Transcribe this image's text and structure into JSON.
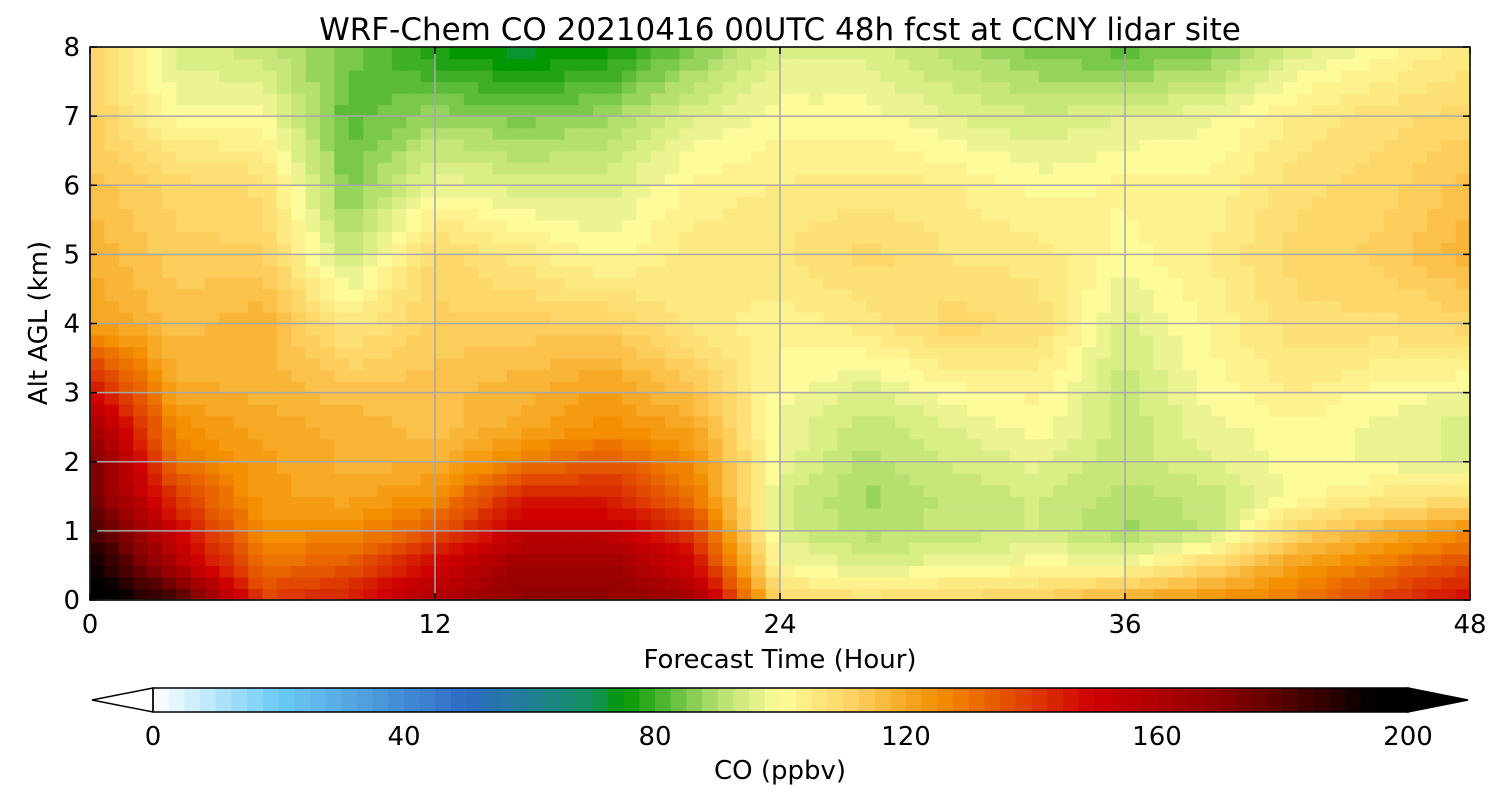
{
  "chart_data": {
    "type": "heatmap",
    "title": "WRF-Chem CO  20210416 00UTC 48h fcst at CCNY lidar site",
    "xlabel": "Forecast Time (Hour)",
    "ylabel": "Alt AGL (km)",
    "xlim": [
      0,
      48
    ],
    "ylim": [
      0,
      8
    ],
    "xticks": [
      0,
      12,
      24,
      36,
      48
    ],
    "yticks": [
      0,
      1,
      2,
      3,
      4,
      5,
      6,
      7,
      8
    ],
    "grid": true,
    "x": [
      0,
      3,
      6,
      9,
      12,
      15,
      18,
      21,
      24,
      27,
      30,
      33,
      36,
      39,
      42,
      45,
      48
    ],
    "y": [
      0,
      0.5,
      1,
      1.5,
      2,
      2.5,
      3,
      4,
      5,
      6,
      7,
      8
    ],
    "z": [
      [
        200,
        185,
        140,
        145,
        160,
        170,
        170,
        165,
        110,
        108,
        110,
        112,
        120,
        125,
        130,
        140,
        150
      ],
      [
        195,
        160,
        130,
        135,
        150,
        165,
        165,
        150,
        100,
        95,
        98,
        100,
        100,
        110,
        122,
        130,
        138
      ],
      [
        185,
        150,
        125,
        125,
        135,
        155,
        155,
        140,
        95,
        90,
        92,
        94,
        88,
        92,
        110,
        118,
        125
      ],
      [
        175,
        140,
        122,
        120,
        125,
        145,
        145,
        130,
        95,
        88,
        92,
        94,
        90,
        92,
        100,
        105,
        108
      ],
      [
        175,
        130,
        122,
        118,
        118,
        128,
        135,
        125,
        98,
        90,
        94,
        97,
        92,
        96,
        100,
        98,
        95
      ],
      [
        165,
        125,
        120,
        118,
        115,
        120,
        125,
        120,
        98,
        92,
        96,
        100,
        92,
        98,
        100,
        98,
        95
      ],
      [
        150,
        120,
        118,
        115,
        115,
        118,
        122,
        115,
        100,
        95,
        100,
        102,
        92,
        100,
        104,
        100,
        98
      ],
      [
        122,
        115,
        118,
        105,
        112,
        112,
        112,
        105,
        102,
        105,
        110,
        108,
        95,
        102,
        108,
        108,
        110
      ],
      [
        118,
        112,
        112,
        92,
        110,
        105,
        100,
        105,
        106,
        110,
        106,
        105,
        100,
        104,
        110,
        112,
        118
      ],
      [
        115,
        110,
        108,
        85,
        98,
        95,
        95,
        102,
        104,
        105,
        104,
        100,
        102,
        102,
        108,
        110,
        115
      ],
      [
        112,
        100,
        100,
        82,
        88,
        85,
        88,
        96,
        100,
        100,
        96,
        94,
        96,
        98,
        104,
        108,
        110
      ],
      [
        110,
        95,
        92,
        85,
        76,
        72,
        75,
        85,
        95,
        95,
        90,
        85,
        82,
        85,
        95,
        100,
        105
      ]
    ],
    "colorbar": {
      "label": "CO  (ppbv)",
      "range": [
        0,
        200
      ],
      "ticks": [
        0,
        40,
        80,
        120,
        160,
        200
      ],
      "extend": "both",
      "stops": [
        {
          "v": 0,
          "c": "#ffffff"
        },
        {
          "v": 20,
          "c": "#6ccbf5"
        },
        {
          "v": 50,
          "c": "#2e6bc4"
        },
        {
          "v": 70,
          "c": "#129060"
        },
        {
          "v": 75,
          "c": "#039703"
        },
        {
          "v": 90,
          "c": "#b5e070"
        },
        {
          "v": 100,
          "c": "#fdfb9a"
        },
        {
          "v": 112,
          "c": "#fdd060"
        },
        {
          "v": 125,
          "c": "#f49000"
        },
        {
          "v": 150,
          "c": "#cf0101"
        },
        {
          "v": 170,
          "c": "#8e0101"
        },
        {
          "v": 195,
          "c": "#000000"
        },
        {
          "v": 200,
          "c": "#000000"
        }
      ]
    }
  }
}
